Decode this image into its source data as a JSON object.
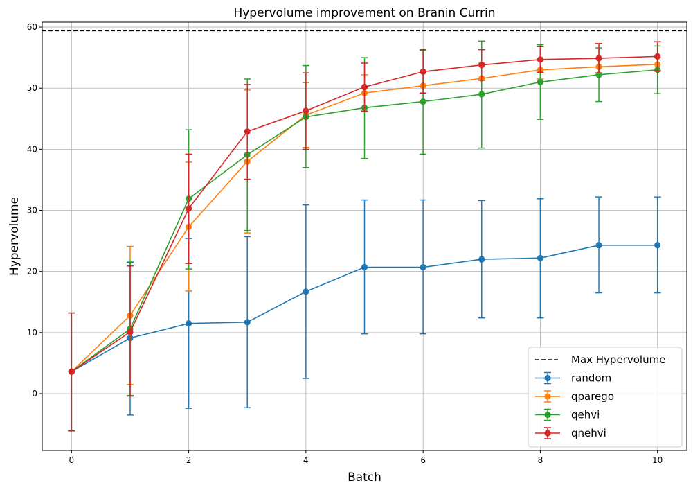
{
  "chart_data": {
    "type": "line",
    "title": "Hypervolume improvement on Branin Currin",
    "xlabel": "Batch",
    "ylabel": "Hypervolume",
    "xlim": [
      -0.5,
      10.5
    ],
    "ylim": [
      -9.3,
      60.8
    ],
    "x_ticks": [
      0,
      2,
      4,
      6,
      8,
      10
    ],
    "y_ticks": [
      0,
      10,
      20,
      30,
      40,
      50,
      60
    ],
    "grid": true,
    "legend_position": "lower-right",
    "reference_line": {
      "name": "Max Hypervolume",
      "y": 59.4,
      "color": "#000000",
      "style": "dashed"
    },
    "x": [
      0,
      1,
      2,
      3,
      4,
      5,
      6,
      7,
      8,
      9,
      10
    ],
    "series": [
      {
        "name": "random",
        "color": "#1f77b4",
        "values": [
          3.6,
          9.1,
          11.5,
          11.7,
          16.7,
          20.7,
          20.7,
          22.0,
          22.2,
          24.3,
          24.3
        ],
        "err_low": [
          -6.1,
          -3.5,
          -2.4,
          -2.3,
          2.5,
          9.8,
          9.8,
          12.4,
          12.4,
          16.5,
          16.5
        ],
        "err_high": [
          13.2,
          21.5,
          25.4,
          25.7,
          30.9,
          31.7,
          31.7,
          31.6,
          31.9,
          32.2,
          32.2
        ]
      },
      {
        "name": "qparego",
        "color": "#ff7f0e",
        "values": [
          3.6,
          12.8,
          27.3,
          38.0,
          45.6,
          49.2,
          50.4,
          51.6,
          53.0,
          53.5,
          53.9
        ],
        "err_low": [
          -6.1,
          1.5,
          16.8,
          26.3,
          40.3,
          46.3,
          48.0,
          49.1,
          51.5,
          52.2,
          52.9
        ],
        "err_high": [
          13.2,
          24.1,
          37.9,
          49.7,
          50.9,
          52.2,
          52.9,
          54.1,
          54.5,
          54.8,
          55.0
        ]
      },
      {
        "name": "qehvi",
        "color": "#2ca02c",
        "values": [
          3.6,
          10.6,
          31.9,
          39.1,
          45.3,
          46.8,
          47.8,
          49.0,
          51.0,
          52.2,
          53.0
        ],
        "err_low": [
          -6.1,
          -0.3,
          20.4,
          26.7,
          37.0,
          38.5,
          39.2,
          40.2,
          44.9,
          47.8,
          49.1
        ],
        "err_high": [
          13.2,
          21.7,
          43.2,
          51.5,
          53.7,
          55.0,
          56.2,
          57.7,
          57.1,
          56.6,
          56.9
        ]
      },
      {
        "name": "qnehvi",
        "color": "#d62728",
        "values": [
          3.6,
          10.1,
          30.3,
          42.9,
          46.3,
          50.2,
          52.7,
          53.8,
          54.7,
          54.9,
          55.2
        ],
        "err_low": [
          -6.1,
          -0.4,
          21.3,
          35.1,
          40.0,
          46.2,
          49.2,
          51.3,
          52.6,
          52.5,
          52.8
        ],
        "err_high": [
          13.2,
          20.9,
          39.2,
          50.6,
          52.5,
          54.1,
          56.3,
          56.3,
          56.8,
          57.3,
          57.6
        ]
      }
    ]
  }
}
